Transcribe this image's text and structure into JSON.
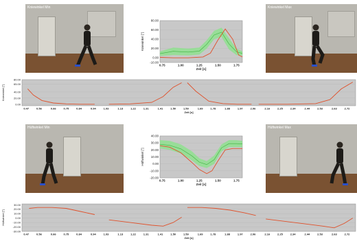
{
  "photos": {
    "knee_min": {
      "label": "Kniewinkel Min"
    },
    "knee_max": {
      "label": "Kniewinkel Max"
    },
    "hip_min": {
      "label": "Hüftwinkel Min"
    },
    "hip_max": {
      "label": "Hüftwinkel Max"
    }
  },
  "colors": {
    "plot_bg": "#c8c8c8",
    "band": "#8fe08f",
    "band_line": "#3cb43c",
    "curve": "#e0502a"
  },
  "chart_data": [
    {
      "id": "knee_zoom",
      "type": "line",
      "xlabel": "Zeit [s]",
      "ylabel": "Kniewinkel [°]",
      "xlim": [
        0.72,
        1.83
      ],
      "ylim": [
        -10,
        80
      ],
      "xticks": [
        "0.75",
        "1.00",
        "1.25",
        "1.50",
        "1.75"
      ],
      "yticks": [
        "80.00",
        "60.00",
        "40.00",
        "20.00",
        "0.00",
        "-10.00"
      ],
      "band": {
        "x": [
          0.72,
          0.9,
          1.1,
          1.25,
          1.35,
          1.45,
          1.55,
          1.65,
          1.75,
          1.83
        ],
        "lower": [
          4,
          6,
          5,
          7,
          20,
          40,
          45,
          18,
          6,
          5
        ],
        "upper": [
          14,
          22,
          20,
          22,
          38,
          58,
          65,
          42,
          20,
          14
        ]
      },
      "series": [
        {
          "x": [
            0.72,
            0.9,
            1.1,
            1.3,
            1.4,
            1.5,
            1.6,
            1.7,
            1.78,
            1.83
          ],
          "y": [
            1,
            0,
            0,
            2,
            10,
            38,
            62,
            40,
            6,
            2
          ]
        }
      ]
    },
    {
      "id": "knee_full",
      "type": "line",
      "xlabel": "Zeit [s]",
      "ylabel": "Kniewinkel [°]",
      "xlim": [
        0.44,
        2.78
      ],
      "ylim": [
        -5,
        80
      ],
      "xticks": [
        "0.47",
        "0.56",
        "0.66",
        "0.75",
        "0.84",
        "0.94",
        "1.03",
        "1.13",
        "1.22",
        "1.31",
        "1.41",
        "1.50",
        "1.59",
        "1.69",
        "1.78",
        "1.88",
        "1.97",
        "2.06",
        "2.16",
        "2.25",
        "2.34",
        "2.44",
        "2.53",
        "2.63",
        "2.72"
      ],
      "yticks": [
        "80.00",
        "65.00",
        "40.00",
        "20.00",
        "0.00"
      ],
      "series": [
        {
          "x": [
            0.48,
            0.52,
            0.58,
            0.66,
            0.75,
            0.85,
            0.95
          ],
          "y": [
            50,
            30,
            12,
            4,
            1,
            0,
            0
          ]
        },
        {
          "x": [
            1.05,
            1.2,
            1.35,
            1.43,
            1.5,
            1.56
          ],
          "y": [
            0,
            1,
            6,
            25,
            55,
            70
          ]
        },
        {
          "x": [
            1.6,
            1.66,
            1.75,
            1.85,
            1.95,
            2.05
          ],
          "y": [
            70,
            42,
            10,
            2,
            0,
            0
          ]
        },
        {
          "x": [
            2.1,
            2.3,
            2.5,
            2.6,
            2.68,
            2.76
          ],
          "y": [
            0,
            0,
            2,
            15,
            50,
            72
          ]
        }
      ]
    },
    {
      "id": "hip_zoom",
      "type": "line",
      "xlabel": "Zeit [s]",
      "ylabel": "Hüftwinkel [°]",
      "xlim": [
        0.72,
        1.83
      ],
      "ylim": [
        -20,
        40
      ],
      "xticks": [
        "0.75",
        "1.00",
        "1.25",
        "1.50",
        "1.75"
      ],
      "yticks": [
        "40.00",
        "30.00",
        "20.00",
        "10.00",
        "0.00",
        "-10.00",
        "-20.00"
      ],
      "band": {
        "x": [
          0.72,
          0.85,
          1.0,
          1.15,
          1.25,
          1.35,
          1.45,
          1.55,
          1.65,
          1.75,
          1.83
        ],
        "lower": [
          22,
          20,
          15,
          5,
          -3,
          -6,
          0,
          18,
          24,
          24,
          24
        ],
        "upper": [
          34,
          33,
          28,
          18,
          8,
          4,
          12,
          28,
          34,
          34,
          33
        ]
      },
      "series": [
        {
          "x": [
            0.72,
            0.85,
            1.0,
            1.15,
            1.25,
            1.35,
            1.42,
            1.5,
            1.6,
            1.7,
            1.83
          ],
          "y": [
            26,
            24,
            16,
            2,
            -8,
            -14,
            -10,
            4,
            20,
            22,
            22
          ]
        }
      ]
    },
    {
      "id": "hip_full",
      "type": "line",
      "xlabel": "Zeit [s]",
      "ylabel": "Hüftwinkel [°]",
      "xlim": [
        0.44,
        2.78
      ],
      "ylim": [
        -30,
        32
      ],
      "xticks": [
        "0.47",
        "0.56",
        "0.66",
        "0.75",
        "0.84",
        "0.94",
        "1.03",
        "1.13",
        "1.22",
        "1.31",
        "1.41",
        "1.50",
        "1.59",
        "1.69",
        "1.78",
        "1.88",
        "1.97",
        "2.06",
        "2.16",
        "2.25",
        "2.34",
        "2.44",
        "2.53",
        "2.63",
        "2.72"
      ],
      "yticks": [
        "30.00",
        "20.00",
        "10.00",
        "0.00",
        "-10.00",
        "-20.00",
        "-30.00"
      ],
      "series": [
        {
          "x": [
            0.49,
            0.55,
            0.65,
            0.75,
            0.85,
            0.95
          ],
          "y": [
            22,
            24,
            24,
            22,
            15,
            8
          ]
        },
        {
          "x": [
            1.05,
            1.2,
            1.35,
            1.43,
            1.5,
            1.56
          ],
          "y": [
            -4,
            -10,
            -16,
            -18,
            -10,
            2
          ]
        },
        {
          "x": [
            1.6,
            1.7,
            1.8,
            1.9,
            2.0,
            2.08
          ],
          "y": [
            24,
            24,
            22,
            18,
            12,
            6
          ]
        },
        {
          "x": [
            2.15,
            2.3,
            2.45,
            2.55,
            2.63,
            2.7,
            2.76
          ],
          "y": [
            -2,
            -8,
            -14,
            -18,
            -22,
            -12,
            0
          ]
        }
      ]
    }
  ]
}
